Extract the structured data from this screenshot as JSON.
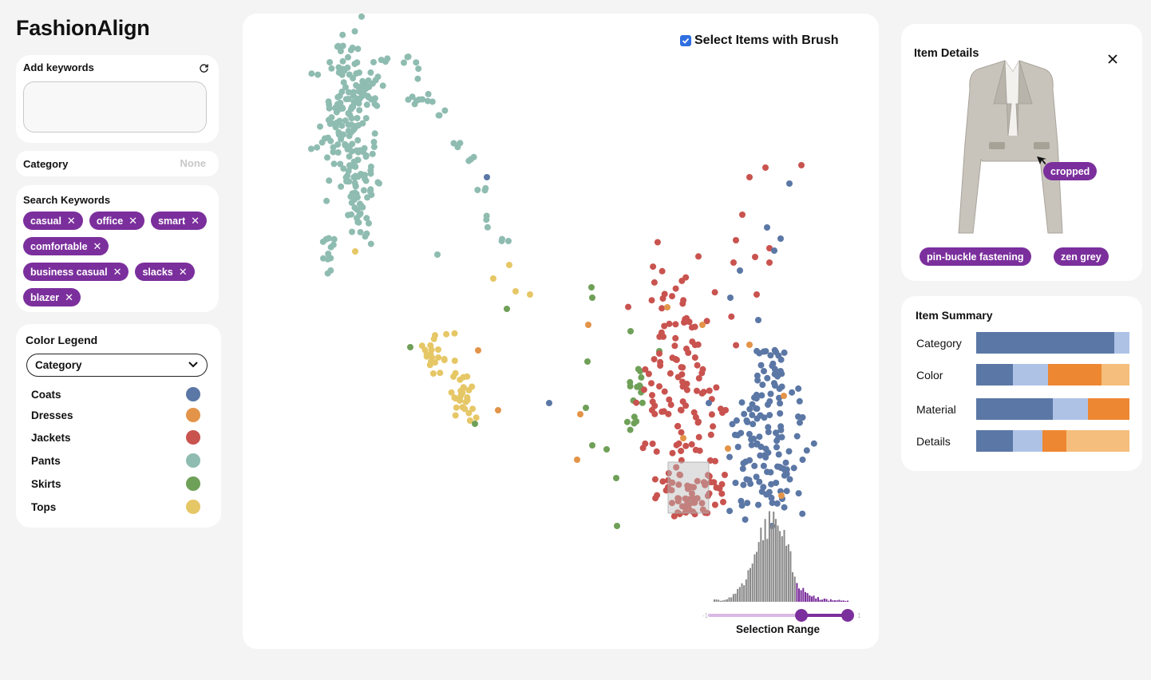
{
  "app": {
    "title": "FashionAlign"
  },
  "keywords": {
    "label": "Add keywords",
    "value": ""
  },
  "category_filter": {
    "label": "Category",
    "value": "None"
  },
  "search_keywords": {
    "label": "Search Keywords",
    "tags": [
      "casual",
      "office",
      "smart",
      "comfortable",
      "business casual",
      "slacks",
      "blazer"
    ]
  },
  "legend": {
    "label": "Color Legend",
    "selected": "Category",
    "items": [
      {
        "name": "Coats",
        "color": "#5b77a5"
      },
      {
        "name": "Dresses",
        "color": "#e39448"
      },
      {
        "name": "Jackets",
        "color": "#c9534f"
      },
      {
        "name": "Pants",
        "color": "#8fbcb0"
      },
      {
        "name": "Skirts",
        "color": "#6fa058"
      },
      {
        "name": "Tops",
        "color": "#e6c766"
      }
    ]
  },
  "scatter": {
    "brush_label": "Select Items with Brush",
    "brush_checked": true,
    "range_label": "Selection Range",
    "range_min_label": "-1",
    "range_max_label": "1",
    "range_values": [
      0.33,
      1.0
    ],
    "hist_accent": "#7b2f9c"
  },
  "details": {
    "title": "Item Details",
    "tags": [
      "cropped",
      "pin-buckle fastening",
      "zen grey"
    ]
  },
  "summary": {
    "title": "Item Summary",
    "rows": [
      {
        "name": "Category",
        "segments": [
          {
            "value": 0.9,
            "color": "#5b77a5"
          },
          {
            "value": 0.1,
            "color": "#aec2e6"
          }
        ]
      },
      {
        "name": "Color",
        "segments": [
          {
            "value": 0.24,
            "color": "#5b77a5"
          },
          {
            "value": 0.23,
            "color": "#aec2e6"
          },
          {
            "value": 0.35,
            "color": "#ee8732"
          },
          {
            "value": 0.18,
            "color": "#f5be7c"
          }
        ]
      },
      {
        "name": "Material",
        "segments": [
          {
            "value": 0.5,
            "color": "#5b77a5"
          },
          {
            "value": 0.23,
            "color": "#aec2e6"
          },
          {
            "value": 0.27,
            "color": "#ee8732"
          }
        ]
      },
      {
        "name": "Details",
        "segments": [
          {
            "value": 0.24,
            "color": "#5b77a5"
          },
          {
            "value": 0.19,
            "color": "#aec2e6"
          },
          {
            "value": 0.16,
            "color": "#ee8732"
          },
          {
            "value": 0.41,
            "color": "#f5be7c"
          }
        ]
      }
    ]
  }
}
